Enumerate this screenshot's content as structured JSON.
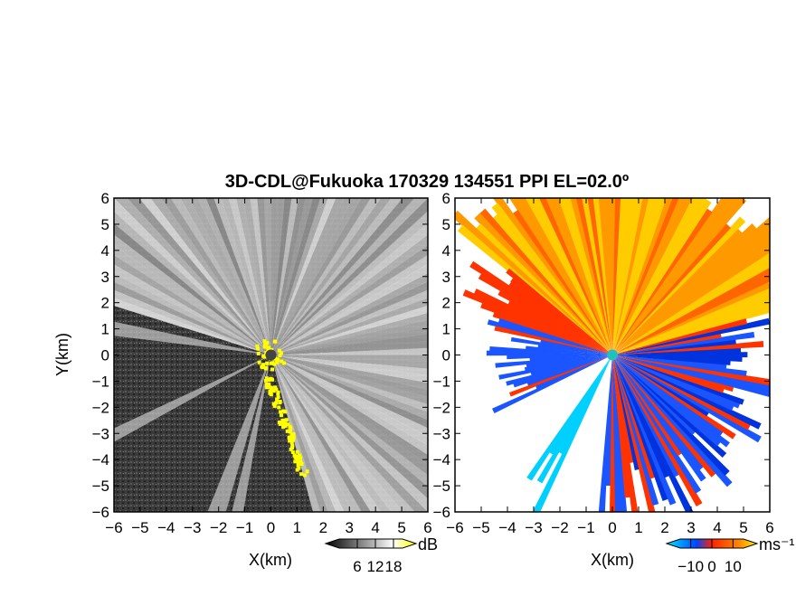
{
  "title": "3D-CDL@Fukuoka 170329 134551 PPI EL=02.0º",
  "chart_data": [
    {
      "type": "heatmap",
      "name": "reflectivity-panel",
      "xlabel": "X(km)",
      "ylabel": "Y(km)",
      "xlim": [
        -6,
        6
      ],
      "ylim": [
        -6,
        6
      ],
      "xticks": [
        "−6",
        "−5",
        "−4",
        "−3",
        "−2",
        "−1",
        "0",
        "1",
        "2",
        "3",
        "4",
        "5",
        "6"
      ],
      "yticks": [
        "6",
        "5",
        "4",
        "3",
        "2",
        "1",
        "0",
        "−1",
        "−2",
        "−3",
        "−4",
        "−5",
        "−6"
      ],
      "colorbar": {
        "unit": "dB",
        "ticks": [
          6,
          12,
          18
        ],
        "tick_labels": [
          "6",
          "12",
          "18"
        ],
        "range": [
          0,
          21
        ],
        "colors": [
          "#000000",
          "#ffffff",
          "#ffff00"
        ]
      },
      "field": {
        "background": "#3c3c3c",
        "bright_sector_deg": [
          -70,
          160
        ],
        "dark_sectors_deg": [
          [
            160,
            200
          ],
          [
            200,
            250
          ]
        ],
        "highlight_color": "#ffff00"
      }
    },
    {
      "type": "heatmap",
      "name": "doppler-velocity-panel",
      "xlabel": "X(km)",
      "xlim": [
        -6,
        6
      ],
      "ylim": [
        -6,
        6
      ],
      "xticks": [
        "−6",
        "−5",
        "−4",
        "−3",
        "−2",
        "−1",
        "0",
        "1",
        "2",
        "3",
        "4",
        "5",
        "6"
      ],
      "yticks": [
        "6",
        "5",
        "4",
        "3",
        "2",
        "1",
        "0",
        "−1",
        "−2",
        "−3",
        "−4",
        "−5",
        "−6"
      ],
      "colorbar": {
        "unit": "ms⁻¹",
        "ticks": [
          -10,
          0,
          10
        ],
        "tick_labels": [
          "−10",
          "0",
          "10"
        ],
        "range": [
          -15,
          15
        ],
        "colors": [
          "#00e6ff",
          "#0044ff",
          "#ff2200",
          "#ff8800",
          "#ffee00"
        ]
      },
      "field": {
        "positive_region": "north",
        "negative_region": "east-south",
        "center_color": "#20c0c0"
      }
    }
  ]
}
